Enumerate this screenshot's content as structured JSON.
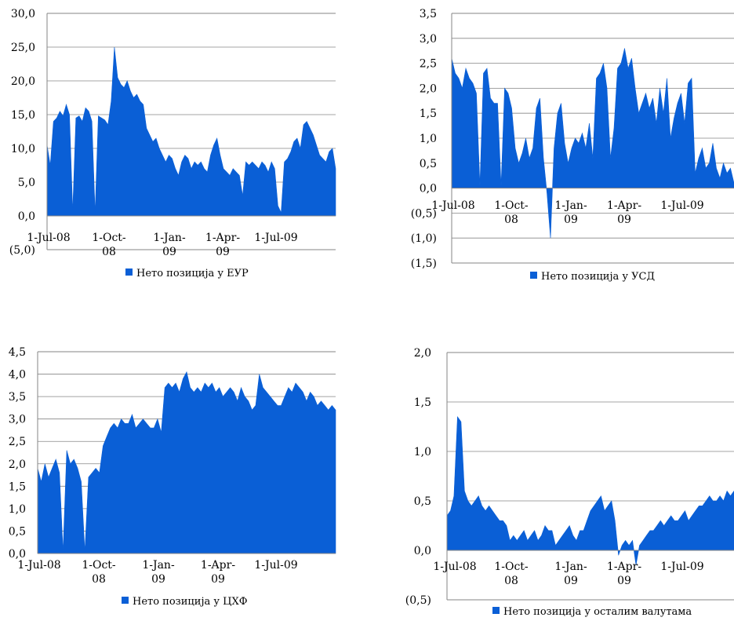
{
  "colors": {
    "series": "#0a5fd6",
    "spike": "#9fa8e8",
    "axis": "#868686",
    "grid": "#868686"
  },
  "chart_data": [
    {
      "type": "area",
      "series": [
        {
          "name": "Нето позиција у ЕУР",
          "values": [
            10.5,
            7.5,
            14.0,
            14.5,
            15.5,
            14.8,
            16.5,
            15.0,
            0.7,
            14.5,
            14.8,
            14.0,
            16.0,
            15.5,
            14.0,
            0.5,
            14.8,
            14.5,
            14.2,
            13.5,
            17.0,
            25.0,
            20.5,
            19.5,
            19.0,
            20.0,
            18.5,
            17.5,
            18.0,
            17.0,
            16.5,
            13.0,
            12.0,
            11.0,
            11.5,
            10.0,
            9.0,
            8.0,
            9.0,
            8.5,
            7.0,
            6.0,
            8.0,
            9.0,
            8.5,
            7.0,
            8.0,
            7.5,
            8.0,
            7.0,
            6.5,
            9.0,
            10.5,
            11.5,
            9.0,
            7.0,
            6.5,
            6.0,
            7.0,
            6.5,
            6.0,
            3.0,
            8.0,
            7.5,
            8.0,
            7.5,
            7.0,
            8.0,
            7.5,
            6.5,
            8.0,
            7.0,
            1.5,
            0.5,
            8.0,
            8.5,
            9.5,
            11.0,
            11.5,
            10.0,
            13.5,
            14.0,
            13.0,
            12.0,
            10.5,
            9.0,
            8.5,
            8.0,
            9.5,
            10.0,
            7.0
          ]
        }
      ],
      "yticks": [
        "30,0",
        "25,0",
        "20,0",
        "15,0",
        "10,0",
        "5,0",
        "0,0",
        "(5,0)"
      ],
      "ylim": [
        -5,
        30
      ],
      "xticks": [
        "1-Jul-08",
        "1-Oct-08",
        "1-Jan-09",
        "1-Apr-09",
        "1-Jul-09"
      ],
      "xlabels": [
        [
          "1-Jul-08"
        ],
        [
          "1-Oct-",
          "08"
        ],
        [
          "1-Jan-",
          "09"
        ],
        [
          "1-Apr-",
          "09"
        ],
        [
          "1-Jul-09"
        ]
      ]
    },
    {
      "type": "area",
      "series": [
        {
          "name": "Нето позиција у УСД",
          "values": [
            2.6,
            2.3,
            2.2,
            2.0,
            2.4,
            2.2,
            2.1,
            1.9,
            0.05,
            2.3,
            2.4,
            1.8,
            1.7,
            1.7,
            0.05,
            2.0,
            1.9,
            1.6,
            0.8,
            0.5,
            0.7,
            1.0,
            0.6,
            0.8,
            1.6,
            1.8,
            0.6,
            -0.1,
            -1.0,
            0.8,
            1.5,
            1.7,
            0.9,
            0.5,
            0.8,
            1.0,
            0.9,
            1.1,
            0.8,
            1.3,
            0.6,
            2.2,
            2.3,
            2.5,
            2.0,
            0.6,
            1.2,
            2.4,
            2.5,
            2.8,
            2.4,
            2.6,
            2.0,
            1.5,
            1.7,
            1.9,
            1.6,
            1.8,
            1.3,
            2.0,
            1.5,
            2.2,
            1.0,
            1.4,
            1.7,
            1.9,
            1.3,
            2.1,
            2.2,
            0.3,
            0.6,
            0.8,
            0.4,
            0.5,
            0.9,
            0.4,
            0.2,
            0.5,
            0.3,
            0.4,
            0.1
          ]
        }
      ],
      "yticks": [
        "3,5",
        "3,0",
        "2,5",
        "2,0",
        "1,5",
        "1,0",
        "0,5",
        "0,0",
        "(0,5)",
        "(1,0)",
        "(1,5)"
      ],
      "ylim": [
        -1.5,
        3.5
      ],
      "xticks": [
        "1-Jul-08",
        "1-Oct-08",
        "1-Jan-09",
        "1-Apr-09",
        "1-Jul-09"
      ],
      "xlabels": [
        [
          "1-Jul-08"
        ],
        [
          "1-Oct-",
          "08"
        ],
        [
          "1-Jan-",
          "09"
        ],
        [
          "1-Apr-",
          "09"
        ],
        [
          "1-Jul-09"
        ]
      ]
    },
    {
      "type": "area",
      "series": [
        {
          "name": "Нето позиција у ЦХФ",
          "values": [
            1.9,
            1.6,
            2.0,
            1.7,
            1.9,
            2.1,
            1.8,
            0.05,
            2.3,
            2.0,
            2.1,
            1.9,
            1.6,
            0.05,
            1.7,
            1.8,
            1.9,
            1.8,
            2.4,
            2.6,
            2.8,
            2.9,
            2.8,
            3.0,
            2.9,
            2.9,
            3.1,
            2.8,
            2.9,
            3.0,
            2.9,
            2.8,
            2.8,
            3.0,
            2.7,
            3.7,
            3.8,
            3.7,
            3.8,
            3.6,
            3.9,
            4.05,
            3.7,
            3.6,
            3.7,
            3.6,
            3.8,
            3.7,
            3.8,
            3.6,
            3.7,
            3.5,
            3.6,
            3.7,
            3.6,
            3.4,
            3.7,
            3.5,
            3.4,
            3.2,
            3.3,
            4.0,
            3.7,
            3.6,
            3.5,
            3.4,
            3.3,
            3.3,
            3.5,
            3.7,
            3.6,
            3.8,
            3.7,
            3.6,
            3.4,
            3.6,
            3.5,
            3.3,
            3.4,
            3.3,
            3.2,
            3.3,
            3.2
          ]
        }
      ],
      "yticks": [
        "4,5",
        "4,0",
        "3,5",
        "3,0",
        "2,5",
        "2,0",
        "1,5",
        "1,0",
        "0,5",
        "0,0"
      ],
      "ylim": [
        0,
        4.5
      ],
      "xticks": [
        "1-Jul-08",
        "1-Oct-08",
        "1-Jan-09",
        "1-Apr-09",
        "1-Jul-09"
      ],
      "xlabels": [
        [
          "1-Jul-08"
        ],
        [
          "1-Oct-",
          "08"
        ],
        [
          "1-Jan-",
          "09"
        ],
        [
          "1-Apr-",
          "09"
        ],
        [
          "1-Jul-09"
        ]
      ]
    },
    {
      "type": "area",
      "series": [
        {
          "name": "Нето позиција у осталим валутама",
          "values": [
            0.35,
            0.4,
            0.55,
            1.35,
            1.3,
            0.6,
            0.5,
            0.45,
            0.5,
            0.55,
            0.45,
            0.4,
            0.45,
            0.4,
            0.35,
            0.3,
            0.3,
            0.25,
            0.1,
            0.15,
            0.1,
            0.15,
            0.2,
            0.1,
            0.15,
            0.2,
            0.1,
            0.15,
            0.25,
            0.2,
            0.2,
            0.05,
            0.1,
            0.15,
            0.2,
            0.25,
            0.15,
            0.1,
            0.2,
            0.2,
            0.3,
            0.4,
            0.45,
            0.5,
            0.55,
            0.4,
            0.45,
            0.5,
            0.3,
            -0.05,
            0.05,
            0.1,
            0.05,
            0.1,
            -0.15,
            0.05,
            0.1,
            0.15,
            0.2,
            0.2,
            0.25,
            0.3,
            0.25,
            0.3,
            0.35,
            0.3,
            0.3,
            0.35,
            0.4,
            0.3,
            0.35,
            0.4,
            0.45,
            0.45,
            0.5,
            0.55,
            0.5,
            0.5,
            0.55,
            0.5,
            0.6,
            0.55,
            0.6
          ]
        }
      ],
      "yticks": [
        "2,0",
        "1,5",
        "1,0",
        "0,5",
        "0,0",
        "(0,5)"
      ],
      "ylim": [
        -0.5,
        2.0
      ],
      "xticks": [
        "1-Jul-08",
        "1-Oct-08",
        "1-Jan-09",
        "1-Apr-09",
        "1-Jul-09"
      ],
      "xlabels": [
        [
          "1-Jul-08"
        ],
        [
          "1-Oct-",
          "08"
        ],
        [
          "1-Jan-",
          "09"
        ],
        [
          "1-Apr-",
          "09"
        ],
        [
          "1-Jul-09"
        ]
      ]
    }
  ]
}
